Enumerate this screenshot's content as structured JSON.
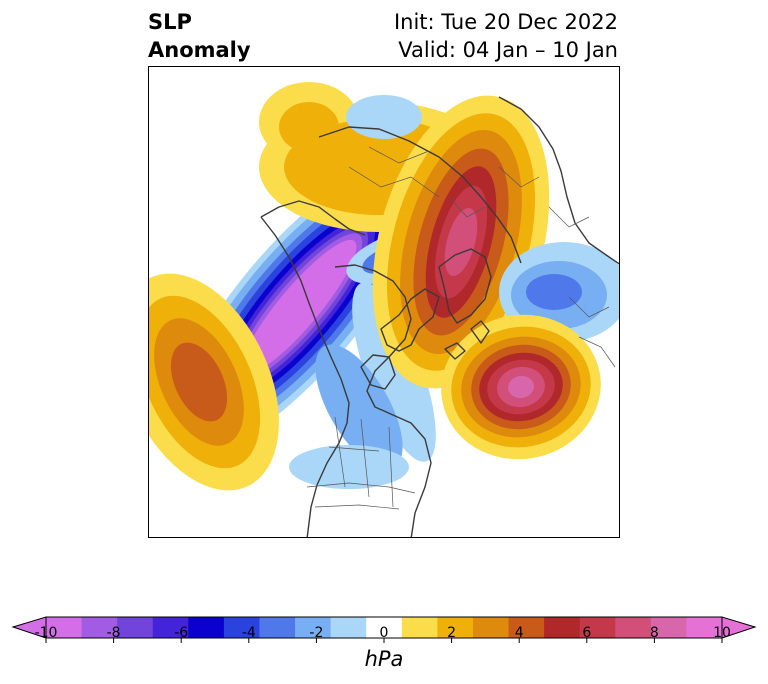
{
  "title": {
    "line1": "SLP",
    "line2": "Anomaly",
    "init": "Init: Tue 20 Dec 2022",
    "valid": "Valid: 04 Jan – 10 Jan"
  },
  "colorbar": {
    "unit": "hPa",
    "tick_labels": [
      "-10",
      "-8",
      "-6",
      "-4",
      "-2",
      "0",
      "2",
      "4",
      "6",
      "8",
      "10"
    ],
    "colors": [
      "#d36ee8",
      "#a25be3",
      "#7145dc",
      "#4424d8",
      "#0b01cf",
      "#2b43de",
      "#4f79ea",
      "#77aff2",
      "#aad6f8",
      "#ffffff",
      "#fbdd4b",
      "#f0b00a",
      "#de8a0d",
      "#c85a1a",
      "#b1282a",
      "#c5384a",
      "#d14f78",
      "#d866aa",
      "#e671d6"
    ],
    "extend": "both"
  },
  "map": {
    "projection": "north-polar-stereographic",
    "centers": [
      {
        "name": "western-north-america-trough",
        "type": "low",
        "min_hpa": -10
      },
      {
        "name": "greenland-low",
        "type": "low",
        "min_hpa": -4
      },
      {
        "name": "western-russia-low",
        "type": "low",
        "min_hpa": -4
      },
      {
        "name": "scandinavia-arctic-high",
        "type": "high",
        "max_hpa": 8
      },
      {
        "name": "north-atlantic-high",
        "type": "high",
        "max_hpa": 8
      },
      {
        "name": "north-pacific-high",
        "type": "high",
        "max_hpa": 6
      },
      {
        "name": "siberia-high",
        "type": "high",
        "max_hpa": 2
      }
    ]
  }
}
